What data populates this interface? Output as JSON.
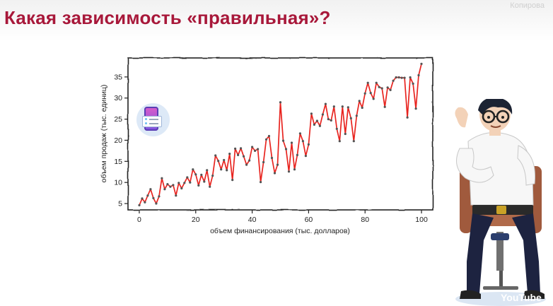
{
  "slide": {
    "title": "Какая зависимость «правильная»?",
    "channel_label": "Копирова",
    "watermark": "YouTube"
  },
  "colors": {
    "title": "#a8183a",
    "line": "#e8241f",
    "points": "#555555"
  },
  "icons": [
    "phone-icon",
    "presenter-character",
    "youtube-icon"
  ],
  "chart_data": {
    "type": "line",
    "title": "",
    "xlabel": "объем финансирования (тыс. долларов)",
    "ylabel": "объем продаж (тыс. единиц)",
    "xlim": [
      -4,
      104
    ],
    "ylim": [
      3.5,
      39.5
    ],
    "xticks": [
      0,
      20,
      40,
      60,
      80,
      100
    ],
    "yticks": [
      5,
      10,
      15,
      20,
      25,
      30,
      35
    ],
    "grid": false,
    "x": [
      0,
      1,
      2,
      3,
      4,
      5,
      6,
      7,
      8,
      9,
      10,
      11,
      12,
      13,
      14,
      15,
      16,
      17,
      18,
      19,
      20,
      21,
      22,
      23,
      24,
      25,
      26,
      27,
      28,
      29,
      30,
      31,
      32,
      33,
      34,
      35,
      36,
      37,
      38,
      39,
      40,
      41,
      42,
      43,
      44,
      45,
      46,
      47,
      48,
      49,
      50,
      51,
      52,
      53,
      54,
      55,
      56,
      57,
      58,
      59,
      60,
      61,
      62,
      63,
      64,
      65,
      66,
      67,
      68,
      69,
      70,
      71,
      72,
      73,
      74,
      75,
      76,
      77,
      78,
      79,
      80,
      81,
      82,
      83,
      84,
      85,
      86,
      87,
      88,
      89,
      90,
      91,
      92,
      93,
      94,
      95,
      96,
      97,
      98,
      99,
      100
    ],
    "y": [
      4.6,
      6.2,
      5.3,
      6.9,
      8.4,
      6.3,
      5.0,
      6.7,
      11.0,
      8.4,
      9.6,
      9.0,
      9.4,
      6.9,
      9.9,
      8.6,
      9.9,
      11.2,
      10.0,
      13.1,
      11.9,
      9.3,
      11.8,
      10.2,
      12.9,
      9.0,
      11.6,
      16.4,
      15.1,
      13.1,
      15.3,
      12.9,
      16.8,
      10.6,
      18.0,
      16.5,
      18.1,
      16.2,
      14.2,
      15.2,
      18.4,
      17.5,
      17.9,
      10.1,
      14.8,
      20.2,
      21.0,
      15.8,
      12.2,
      14.2,
      29.0,
      19.9,
      17.9,
      12.6,
      19.4,
      13.1,
      16.5,
      21.6,
      19.8,
      16.3,
      19.0,
      26.3,
      23.7,
      24.6,
      23.4,
      26.1,
      28.6,
      25.0,
      24.7,
      28.0,
      22.7,
      19.8,
      28.0,
      21.5,
      27.8,
      25.2,
      19.8,
      25.8,
      29.3,
      27.7,
      31.1,
      33.6,
      31.2,
      29.8,
      33.6,
      32.6,
      32.3,
      27.9,
      32.5,
      31.9,
      34.1,
      34.9,
      34.9,
      34.8,
      34.8,
      25.4,
      34.9,
      33.4,
      27.5,
      35.4,
      38.1
    ]
  }
}
